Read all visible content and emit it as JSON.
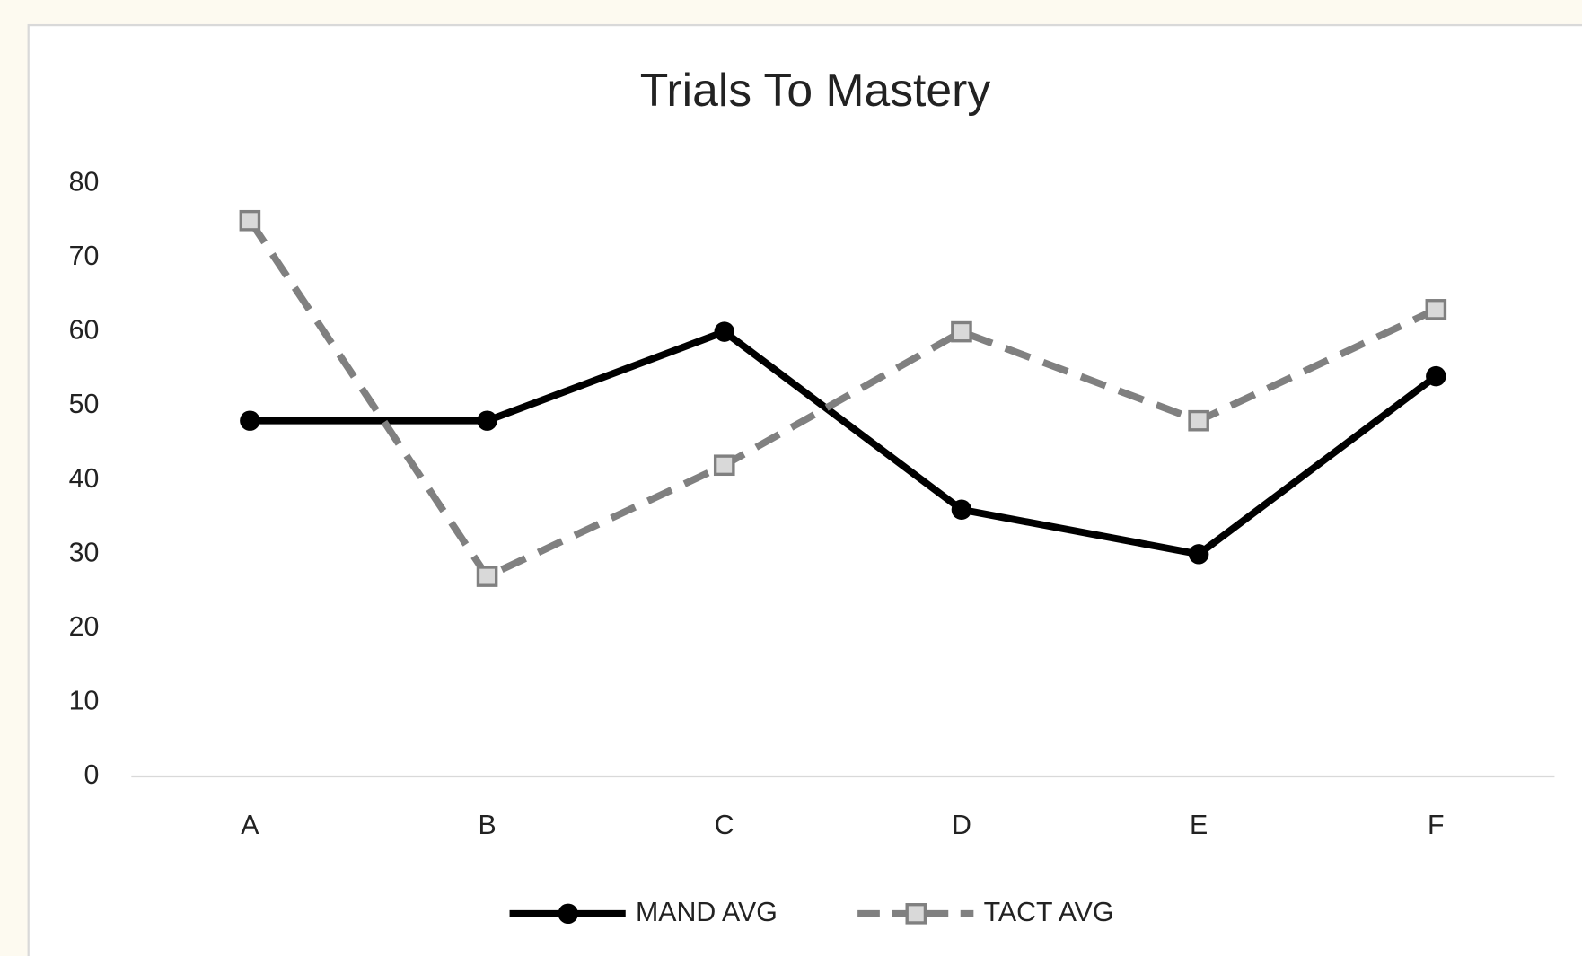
{
  "chart_data": {
    "type": "line",
    "title": "Trials To Mastery",
    "categories": [
      "A",
      "B",
      "C",
      "D",
      "E",
      "F"
    ],
    "series": [
      {
        "name": "MAND AVG",
        "color": "#000000",
        "values": [
          48,
          48,
          60,
          36,
          30,
          54
        ]
      },
      {
        "name": "TACT AVG",
        "color": "#808080",
        "values": [
          75,
          27,
          42,
          60,
          48,
          63
        ]
      }
    ],
    "ylim": [
      0,
      80
    ],
    "yticks": [
      0,
      10,
      20,
      30,
      40,
      50,
      60,
      70,
      80
    ],
    "grid": false,
    "legend": "bottom"
  }
}
